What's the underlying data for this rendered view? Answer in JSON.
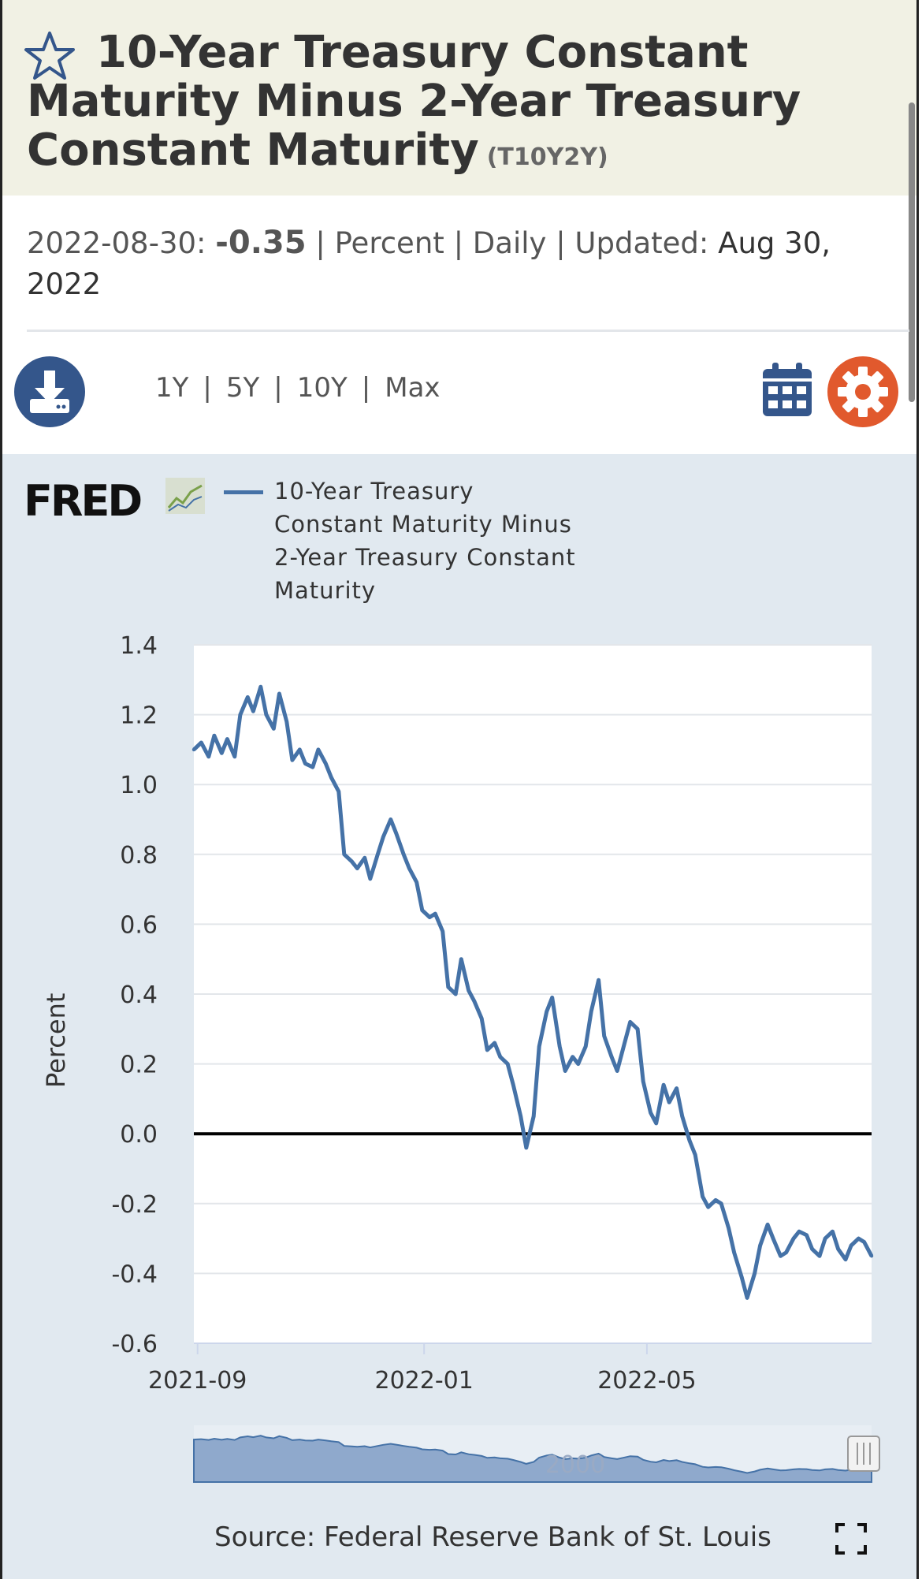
{
  "header": {
    "title": "10-Year Treasury Constant Maturity Minus 2-Year Treasury Constant Maturity",
    "series_id": "(T10Y2Y)"
  },
  "meta": {
    "date": "2022-08-30:",
    "value": "-0.35",
    "units": "Percent",
    "frequency": "Daily",
    "updated_label": "Updated:",
    "updated_date": "Aug 30, 2022",
    "separator": "|"
  },
  "toolbar": {
    "ranges": [
      "1Y",
      "5Y",
      "10Y",
      "Max"
    ]
  },
  "colors": {
    "header_bg": "#f1f1e4",
    "chart_bg": "#e1e9f0",
    "series": "#4572a7",
    "download_button": "#34568b",
    "settings_button": "#e1592d"
  },
  "icons": [
    "star-icon",
    "download-icon",
    "calendar-icon",
    "gear-icon",
    "fullscreen-icon"
  ],
  "chart": {
    "logo": "FRED",
    "legend_label": "10-Year Treasury Constant Maturity Minus 2-Year Treasury Constant Maturity",
    "navigator_label": "2000",
    "source": "Source: Federal Reserve Bank of St. Louis"
  },
  "chart_data": {
    "type": "line",
    "title": "",
    "ylabel": "Percent",
    "xlabel": "",
    "ylim": [
      -0.6,
      1.4
    ],
    "xlim": [
      "2021-08-30",
      "2022-08-30"
    ],
    "grid": true,
    "legend": "top",
    "yticks": [
      "1.4",
      "1.2",
      "1.0",
      "0.8",
      "0.6",
      "0.4",
      "0.2",
      "0.0",
      "-0.2",
      "-0.4",
      "-0.6"
    ],
    "xticks": [
      "2021-09",
      "2022-01",
      "2022-05"
    ],
    "reference_line": 0.0,
    "series": [
      {
        "name": "10-Year Treasury Constant Maturity Minus 2-Year Treasury Constant Maturity",
        "x": [
          "2021-08-30",
          "2021-09-03",
          "2021-09-07",
          "2021-09-10",
          "2021-09-14",
          "2021-09-17",
          "2021-09-21",
          "2021-09-24",
          "2021-09-28",
          "2021-10-01",
          "2021-10-05",
          "2021-10-08",
          "2021-10-12",
          "2021-10-15",
          "2021-10-19",
          "2021-10-22",
          "2021-10-26",
          "2021-10-29",
          "2021-11-02",
          "2021-11-05",
          "2021-11-09",
          "2021-11-12",
          "2021-11-16",
          "2021-11-19",
          "2021-11-23",
          "2021-11-26",
          "2021-11-30",
          "2021-12-03",
          "2021-12-07",
          "2021-12-10",
          "2021-12-14",
          "2021-12-17",
          "2021-12-21",
          "2021-12-24",
          "2021-12-28",
          "2021-12-31",
          "2022-01-04",
          "2022-01-07",
          "2022-01-11",
          "2022-01-14",
          "2022-01-18",
          "2022-01-21",
          "2022-01-25",
          "2022-01-28",
          "2022-02-01",
          "2022-02-04",
          "2022-02-08",
          "2022-02-11",
          "2022-02-15",
          "2022-02-18",
          "2022-02-22",
          "2022-02-25",
          "2022-03-01",
          "2022-03-04",
          "2022-03-08",
          "2022-03-11",
          "2022-03-15",
          "2022-03-18",
          "2022-03-22",
          "2022-03-25",
          "2022-03-29",
          "2022-04-01",
          "2022-04-05",
          "2022-04-08",
          "2022-04-12",
          "2022-04-15",
          "2022-04-19",
          "2022-04-22",
          "2022-04-26",
          "2022-04-29",
          "2022-05-03",
          "2022-05-06",
          "2022-05-10",
          "2022-05-13",
          "2022-05-17",
          "2022-05-20",
          "2022-05-24",
          "2022-05-27",
          "2022-05-31",
          "2022-06-03",
          "2022-06-07",
          "2022-06-10",
          "2022-06-14",
          "2022-06-17",
          "2022-06-21",
          "2022-06-24",
          "2022-06-28",
          "2022-07-01",
          "2022-07-05",
          "2022-07-08",
          "2022-07-12",
          "2022-07-15",
          "2022-07-19",
          "2022-07-22",
          "2022-07-26",
          "2022-07-29",
          "2022-08-02",
          "2022-08-05",
          "2022-08-09",
          "2022-08-12",
          "2022-08-16",
          "2022-08-19",
          "2022-08-23",
          "2022-08-26",
          "2022-08-30"
        ],
        "values": [
          1.1,
          1.12,
          1.08,
          1.14,
          1.09,
          1.13,
          1.08,
          1.2,
          1.25,
          1.21,
          1.28,
          1.2,
          1.16,
          1.26,
          1.18,
          1.07,
          1.1,
          1.06,
          1.05,
          1.1,
          1.06,
          1.02,
          0.98,
          0.8,
          0.78,
          0.76,
          0.79,
          0.73,
          0.8,
          0.85,
          0.9,
          0.86,
          0.8,
          0.76,
          0.72,
          0.64,
          0.62,
          0.63,
          0.58,
          0.42,
          0.4,
          0.5,
          0.41,
          0.38,
          0.33,
          0.24,
          0.26,
          0.22,
          0.2,
          0.14,
          0.05,
          -0.04,
          0.05,
          0.25,
          0.35,
          0.39,
          0.25,
          0.18,
          0.22,
          0.2,
          0.25,
          0.35,
          0.44,
          0.28,
          0.22,
          0.18,
          0.26,
          0.32,
          0.3,
          0.15,
          0.06,
          0.03,
          0.14,
          0.09,
          0.13,
          0.05,
          -0.02,
          -0.06,
          -0.18,
          -0.21,
          -0.19,
          -0.2,
          -0.27,
          -0.34,
          -0.41,
          -0.47,
          -0.4,
          -0.32,
          -0.26,
          -0.3,
          -0.35,
          -0.34,
          -0.3,
          -0.28,
          -0.29,
          -0.33,
          -0.35,
          -0.3,
          -0.28,
          -0.33,
          -0.36,
          -0.32,
          -0.3,
          -0.31,
          -0.35
        ]
      }
    ]
  }
}
